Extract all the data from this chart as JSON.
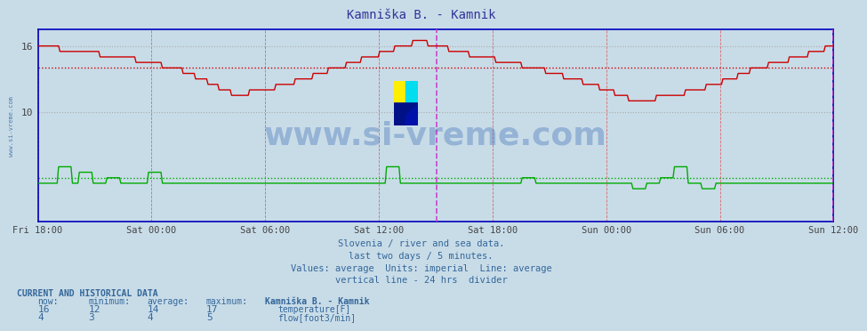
{
  "title": "Kamniška B. - Kamnik",
  "background_color": "#c8dce8",
  "plot_bg_color": "#c8dce8",
  "x_labels": [
    "Fri 18:00",
    "Sat 00:00",
    "Sat 06:00",
    "Sat 12:00",
    "Sat 18:00",
    "Sun 00:00",
    "Sun 06:00",
    "Sun 12:00"
  ],
  "ylim": [
    0,
    17.5
  ],
  "yticks": [
    10,
    16
  ],
  "temp_color": "#cc0000",
  "flow_color": "#00aa00",
  "avg_temp_color": "#cc0000",
  "avg_flow_color": "#00aa00",
  "vline_color": "#cc44cc",
  "temp_avg": 14,
  "flow_avg": 4,
  "subtitle_lines": [
    "Slovenia / river and sea data.",
    "last two days / 5 minutes.",
    "Values: average  Units: imperial  Line: average",
    "vertical line - 24 hrs  divider"
  ],
  "footer_title": "CURRENT AND HISTORICAL DATA",
  "col_headers": [
    "now:",
    "minimum:",
    "average:",
    "maximum:",
    "Kamniška B. - Kamnik"
  ],
  "temp_row": [
    "16",
    "12",
    "14",
    "17",
    "temperature[F]"
  ],
  "flow_row": [
    "4",
    "3",
    "4",
    "5",
    "flow[foot3/min]"
  ],
  "watermark": "www.si-vreme.com",
  "watermark_color": "#2255aa",
  "sidebar_text": "www.si-vreme.com"
}
